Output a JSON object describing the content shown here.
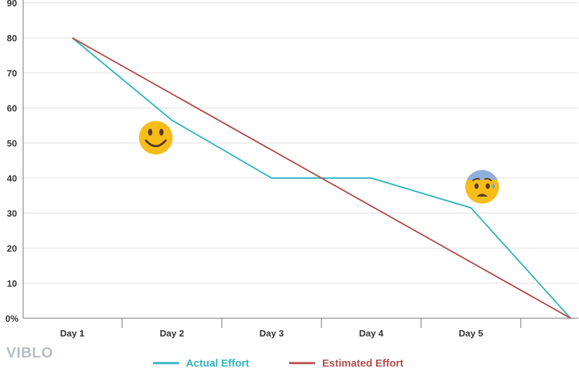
{
  "chart_data": {
    "type": "line",
    "title": "",
    "xlabel": "",
    "ylabel": "",
    "categories": [
      "Day 1",
      "Day 2",
      "Day 3",
      "Day 4",
      "Day 5",
      ""
    ],
    "ylim": [
      0,
      90
    ],
    "yticks": [
      {
        "value": 0,
        "label": "0%"
      },
      {
        "value": 10,
        "label": "10"
      },
      {
        "value": 20,
        "label": "20"
      },
      {
        "value": 30,
        "label": "30"
      },
      {
        "value": 40,
        "label": "40"
      },
      {
        "value": 50,
        "label": "50"
      },
      {
        "value": 60,
        "label": "60"
      },
      {
        "value": 70,
        "label": "70"
      },
      {
        "value": 80,
        "label": "80"
      },
      {
        "value": 90,
        "label": "90"
      }
    ],
    "grid": true,
    "legend_position": "bottom",
    "series": [
      {
        "name": "Actual Effort",
        "color": "#2fb4be",
        "values": [
          80,
          56.5,
          40,
          40,
          31.5,
          0
        ]
      },
      {
        "name": "Estimated Effort",
        "color": "#b34d4a",
        "values": [
          80,
          64,
          48,
          32,
          16,
          0
        ]
      }
    ],
    "annotations": [
      {
        "type": "emoji",
        "name": "smiley-face-icon",
        "near": "Day 2",
        "value": 51.5,
        "emotion": "happy"
      },
      {
        "type": "emoji",
        "name": "anxious-face-icon",
        "near": "Day 5",
        "value": 37.5,
        "emotion": "worried"
      }
    ]
  },
  "watermark": "VIBLO"
}
